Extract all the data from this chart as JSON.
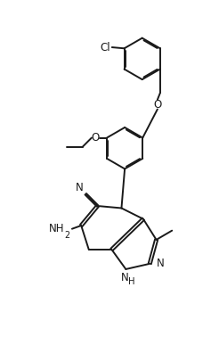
{
  "bg_color": "#ffffff",
  "line_color": "#1a1a1a",
  "line_width": 1.4,
  "font_size": 8.5,
  "figsize": [
    2.46,
    3.96
  ],
  "dpi": 100,
  "xlim": [
    0,
    10
  ],
  "ylim": [
    0,
    16
  ]
}
